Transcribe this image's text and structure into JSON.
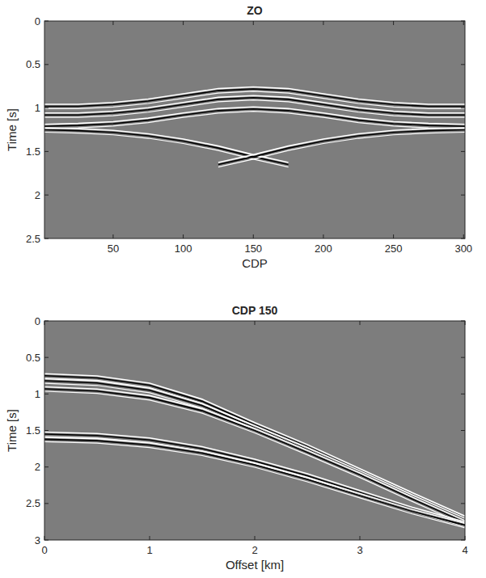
{
  "chart_data": [
    {
      "type": "line",
      "title": "ZO",
      "x_label": "CDP",
      "y_label": "Time [s]",
      "x": [
        1,
        25,
        50,
        75,
        100,
        125,
        150,
        175,
        200,
        225,
        250,
        275,
        301
      ],
      "series": [
        {
          "color": "#000000",
          "values": [
            0.98,
            0.98,
            0.96,
            0.92,
            0.86,
            0.8,
            0.78,
            0.8,
            0.86,
            0.92,
            0.96,
            0.98,
            0.98
          ]
        },
        {
          "color": "#000000",
          "values": [
            1.08,
            1.08,
            1.06,
            1.02,
            0.96,
            0.9,
            0.88,
            0.9,
            0.96,
            1.02,
            1.06,
            1.08,
            1.08
          ]
        },
        {
          "color": "#000000",
          "values": [
            1.21,
            1.2,
            1.18,
            1.14,
            1.08,
            1.03,
            1.01,
            1.03,
            1.08,
            1.14,
            1.18,
            1.2,
            1.21
          ]
        },
        {
          "color": "#000000",
          "values": [
            1.25,
            1.26,
            1.28,
            1.32,
            1.38,
            1.46,
            1.56,
            1.65,
            null,
            null,
            null,
            null,
            null
          ]
        },
        {
          "color": "#000000",
          "values": [
            null,
            null,
            null,
            null,
            null,
            1.65,
            1.56,
            1.46,
            1.38,
            1.32,
            1.28,
            1.26,
            1.25
          ]
        }
      ],
      "xlim": [
        1,
        301
      ],
      "xticks": [
        50,
        100,
        150,
        200,
        250,
        300
      ],
      "ylim": [
        0,
        2.5
      ],
      "yticks": [
        0,
        0.5,
        1,
        1.5,
        2,
        2.5
      ],
      "grid": false
    },
    {
      "type": "line",
      "title": "CDP 150",
      "x_label": "Offset [km]",
      "y_label": "Time [s]",
      "x": [
        0,
        0.5,
        1,
        1.5,
        2,
        2.5,
        3,
        3.5,
        4
      ],
      "series": [
        {
          "color": "#000000",
          "values": [
            0.75,
            0.78,
            0.88,
            1.1,
            1.42,
            1.72,
            2.05,
            2.38,
            2.7
          ]
        },
        {
          "color": "#000000",
          "values": [
            0.82,
            0.85,
            0.95,
            1.16,
            1.46,
            1.76,
            2.08,
            2.41,
            2.73
          ]
        },
        {
          "color": "#000000",
          "values": [
            0.93,
            0.96,
            1.05,
            1.23,
            1.5,
            1.8,
            2.11,
            2.44,
            2.76
          ]
        },
        {
          "color": "#000000",
          "values": [
            1.55,
            1.57,
            1.63,
            1.75,
            1.92,
            2.12,
            2.35,
            2.58,
            2.78
          ]
        },
        {
          "color": "#000000",
          "values": [
            1.62,
            1.64,
            1.7,
            1.81,
            1.97,
            2.17,
            2.39,
            2.61,
            2.8
          ]
        }
      ],
      "xlim": [
        0,
        4
      ],
      "xticks": [
        0,
        1,
        2,
        3,
        4
      ],
      "ylim": [
        0,
        3
      ],
      "yticks": [
        0,
        0.5,
        1,
        1.5,
        2,
        2.5,
        3
      ],
      "grid": false
    }
  ]
}
